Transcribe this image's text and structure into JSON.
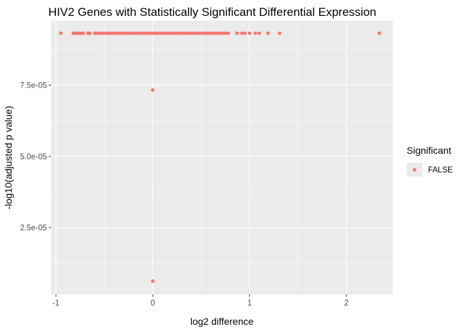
{
  "chart_data": {
    "type": "scatter",
    "title": "HIV2 Genes with Statistically Significant Differential Expression",
    "xlabel": "log2 difference",
    "ylabel": "-log10(adjusted p value)",
    "xlim": [
      -1.05,
      2.48
    ],
    "ylim": [
      1.6e-06,
      9.76e-05
    ],
    "x_ticks": [
      -1,
      0,
      1,
      2
    ],
    "x_tick_labels": [
      "-1",
      "0",
      "1",
      "2"
    ],
    "y_ticks": [
      2.5e-05,
      5e-05,
      7.5e-05
    ],
    "y_tick_labels": [
      "2.5e-05",
      "5.0e-05",
      "7.5e-05"
    ],
    "grid": true,
    "legend": {
      "title": "Significant",
      "placement": "right",
      "entries": [
        {
          "label": "FALSE",
          "color": "#F8766D"
        }
      ]
    },
    "series": [
      {
        "name": "FALSE",
        "color": "#F8766D",
        "points": [
          {
            "x": -0.95,
            "y": 9.32e-05
          },
          {
            "x": -0.82,
            "y": 9.32e-05
          },
          {
            "x": -0.8,
            "y": 9.32e-05
          },
          {
            "x": -0.78,
            "y": 9.32e-05
          },
          {
            "x": -0.76,
            "y": 9.32e-05
          },
          {
            "x": -0.74,
            "y": 9.32e-05
          },
          {
            "x": -0.72,
            "y": 9.32e-05
          },
          {
            "x": -0.67,
            "y": 9.32e-05
          },
          {
            "x": -0.65,
            "y": 9.32e-05
          },
          {
            "x": -0.6,
            "y": 9.32e-05
          },
          {
            "x": -0.57,
            "y": 9.32e-05
          },
          {
            "x": -0.54,
            "y": 9.32e-05
          },
          {
            "x": -0.51,
            "y": 9.32e-05
          },
          {
            "x": -0.48,
            "y": 9.32e-05
          },
          {
            "x": -0.45,
            "y": 9.32e-05
          },
          {
            "x": -0.42,
            "y": 9.32e-05
          },
          {
            "x": -0.39,
            "y": 9.32e-05
          },
          {
            "x": -0.36,
            "y": 9.32e-05
          },
          {
            "x": -0.33,
            "y": 9.32e-05
          },
          {
            "x": -0.3,
            "y": 9.32e-05
          },
          {
            "x": -0.27,
            "y": 9.32e-05
          },
          {
            "x": -0.24,
            "y": 9.32e-05
          },
          {
            "x": -0.21,
            "y": 9.32e-05
          },
          {
            "x": -0.18,
            "y": 9.32e-05
          },
          {
            "x": -0.15,
            "y": 9.32e-05
          },
          {
            "x": -0.12,
            "y": 9.32e-05
          },
          {
            "x": -0.09,
            "y": 9.32e-05
          },
          {
            "x": -0.06,
            "y": 9.32e-05
          },
          {
            "x": -0.03,
            "y": 9.32e-05
          },
          {
            "x": 0,
            "y": 9.32e-05
          },
          {
            "x": 0.03,
            "y": 9.32e-05
          },
          {
            "x": 0.06,
            "y": 9.32e-05
          },
          {
            "x": 0.09,
            "y": 9.32e-05
          },
          {
            "x": 0.12,
            "y": 9.32e-05
          },
          {
            "x": 0.15,
            "y": 9.32e-05
          },
          {
            "x": 0.18,
            "y": 9.32e-05
          },
          {
            "x": 0.21,
            "y": 9.32e-05
          },
          {
            "x": 0.24,
            "y": 9.32e-05
          },
          {
            "x": 0.27,
            "y": 9.32e-05
          },
          {
            "x": 0.3,
            "y": 9.32e-05
          },
          {
            "x": 0.33,
            "y": 9.32e-05
          },
          {
            "x": 0.36,
            "y": 9.32e-05
          },
          {
            "x": 0.39,
            "y": 9.32e-05
          },
          {
            "x": 0.42,
            "y": 9.32e-05
          },
          {
            "x": 0.45,
            "y": 9.32e-05
          },
          {
            "x": 0.48,
            "y": 9.32e-05
          },
          {
            "x": 0.51,
            "y": 9.32e-05
          },
          {
            "x": 0.54,
            "y": 9.32e-05
          },
          {
            "x": 0.57,
            "y": 9.32e-05
          },
          {
            "x": 0.6,
            "y": 9.32e-05
          },
          {
            "x": 0.63,
            "y": 9.32e-05
          },
          {
            "x": 0.66,
            "y": 9.32e-05
          },
          {
            "x": 0.69,
            "y": 9.32e-05
          },
          {
            "x": 0.72,
            "y": 9.32e-05
          },
          {
            "x": 0.75,
            "y": 9.32e-05
          },
          {
            "x": 0.78,
            "y": 9.32e-05
          },
          {
            "x": 0.87,
            "y": 9.32e-05
          },
          {
            "x": 0.92,
            "y": 9.32e-05
          },
          {
            "x": 0.95,
            "y": 9.32e-05
          },
          {
            "x": 1.0,
            "y": 9.32e-05
          },
          {
            "x": 1.06,
            "y": 9.32e-05
          },
          {
            "x": 1.1,
            "y": 9.32e-05
          },
          {
            "x": 1.19,
            "y": 9.32e-05
          },
          {
            "x": 1.31,
            "y": 9.32e-05
          },
          {
            "x": 2.34,
            "y": 9.32e-05
          },
          {
            "x": 0,
            "y": 7.33e-05
          },
          {
            "x": 0,
            "y": 6.3e-06
          }
        ]
      }
    ]
  }
}
